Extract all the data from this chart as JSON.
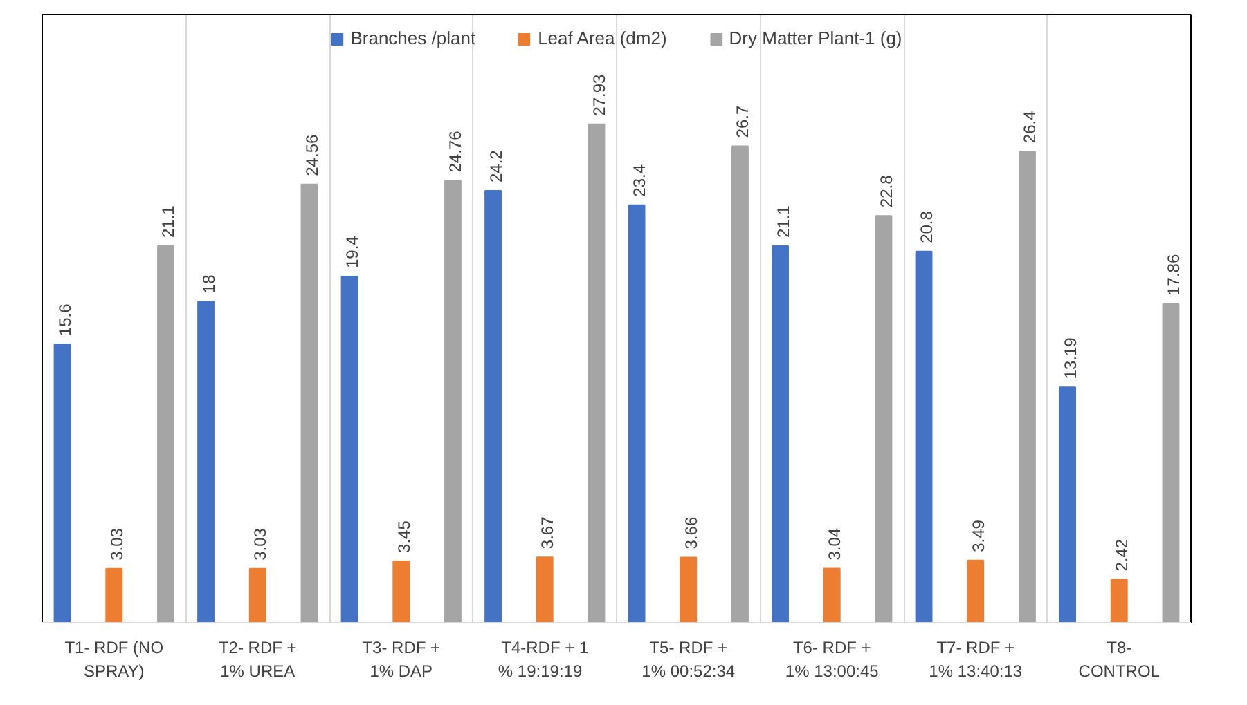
{
  "chart_data": {
    "type": "bar",
    "categories": [
      "T1- RDF (NO\nSPRAY)",
      "T2- RDF +\n1% UREA",
      "T3- RDF +\n1% DAP",
      "T4-RDF + 1\n%   19:19:19",
      "T5- RDF +\n1% 00:52:34",
      "T6- RDF +\n1% 13:00:45",
      "T7- RDF +\n1% 13:40:13",
      "T8-\nCONTROL"
    ],
    "series": [
      {
        "name": "Branches /plant",
        "color": "#4472c4",
        "values": [
          15.6,
          18,
          19.4,
          24.2,
          23.4,
          21.1,
          20.8,
          13.19
        ]
      },
      {
        "name": "Leaf Area (dm2)",
        "color": "#ed7d31",
        "values": [
          3.03,
          3.03,
          3.45,
          3.67,
          3.66,
          3.04,
          3.49,
          2.42
        ]
      },
      {
        "name": "Dry Matter Plant-1 (g)",
        "color": "#a5a5a5",
        "values": [
          21.1,
          24.56,
          24.76,
          27.93,
          26.7,
          22.8,
          26.4,
          17.86
        ]
      }
    ],
    "data_labels": true,
    "legend": "top",
    "grid": "x"
  }
}
